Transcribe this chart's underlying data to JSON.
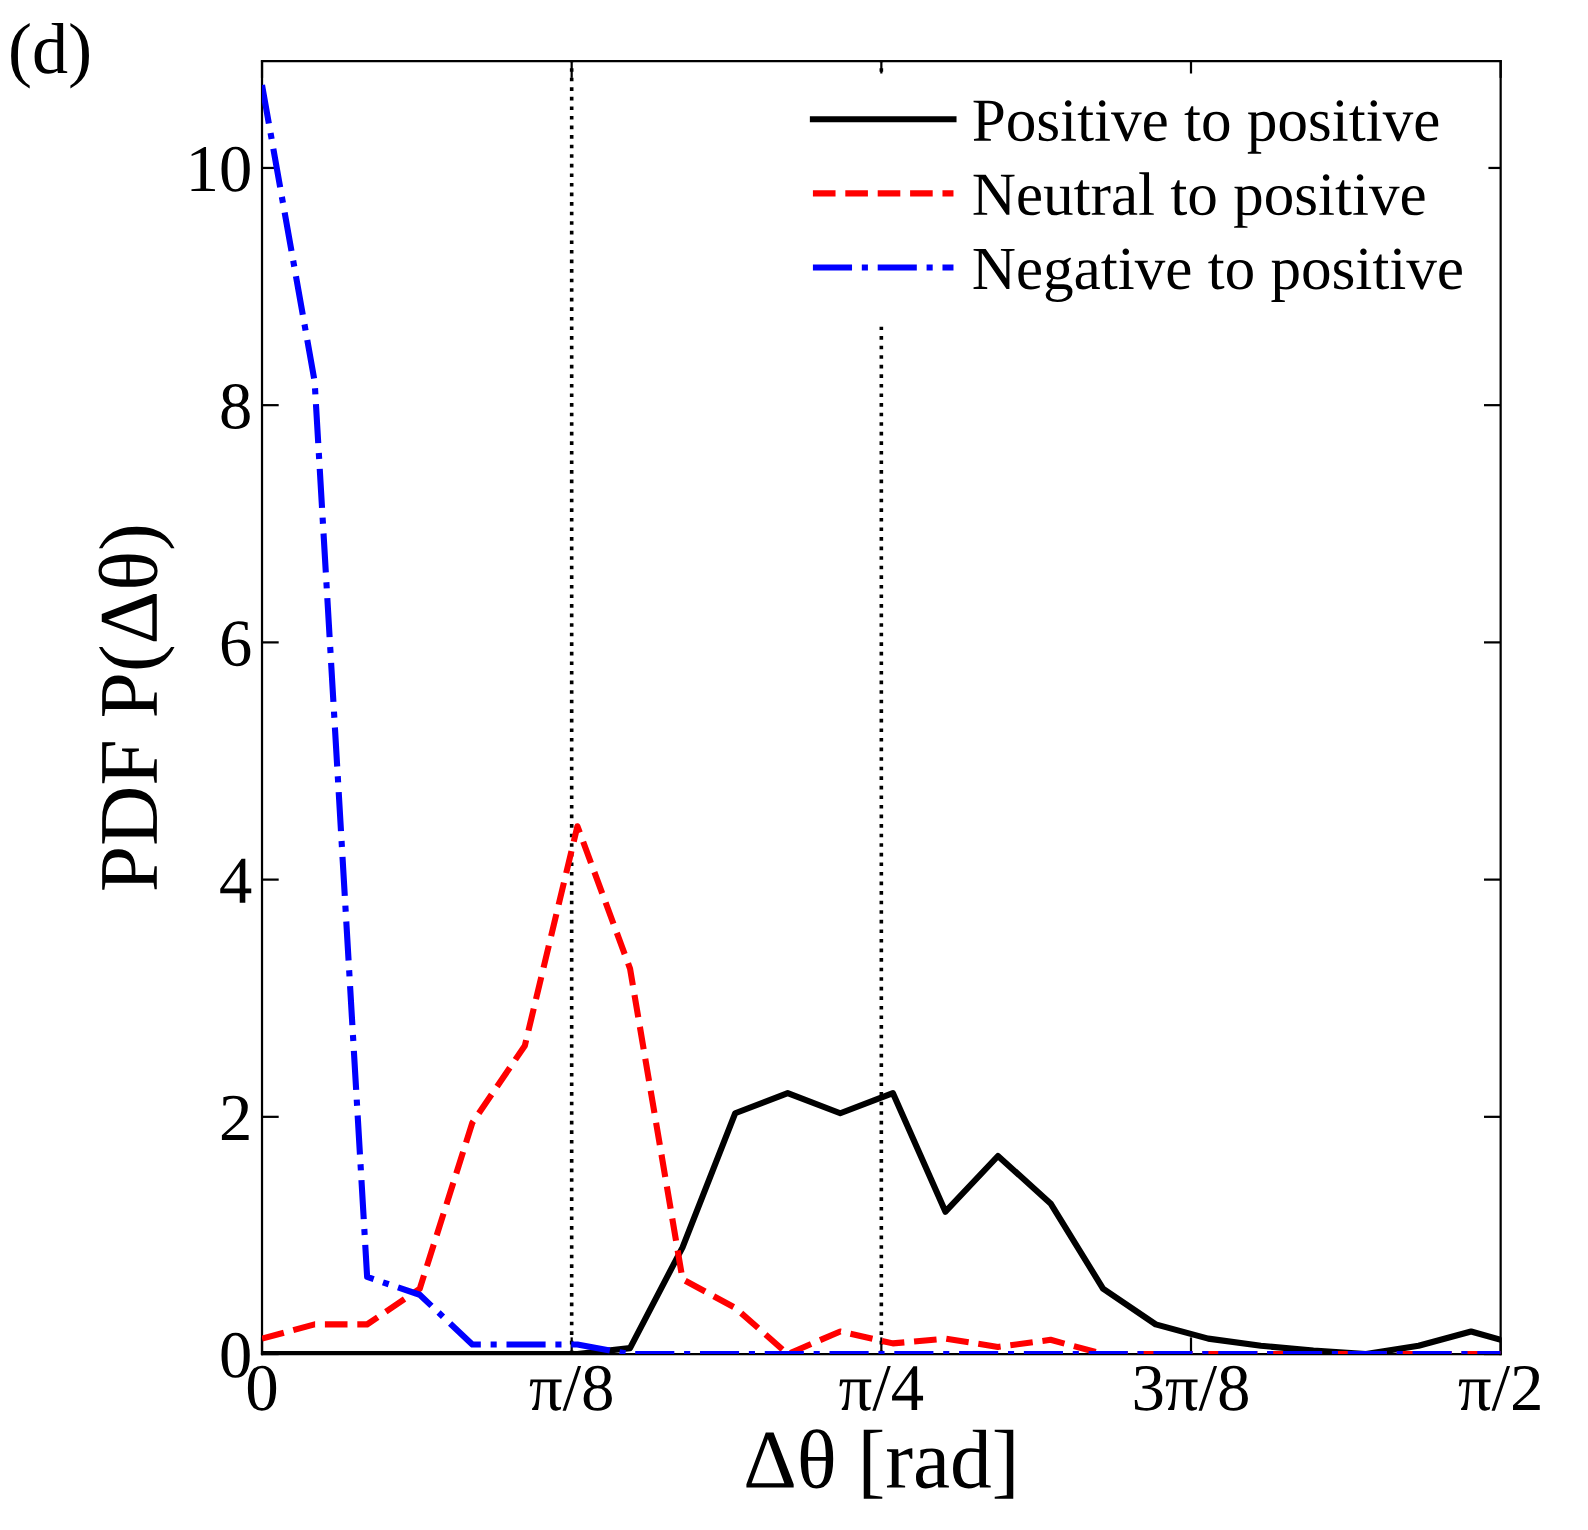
{
  "chart_data": {
    "type": "line",
    "annotations": [
      "(d)"
    ],
    "xlabel": "Δθ [rad]",
    "ylabel": "PDF P(Δθ)",
    "x": [
      0,
      0.0667,
      0.1333,
      0.2,
      0.2667,
      0.3333,
      0.4,
      0.4667,
      0.5333,
      0.6,
      0.6667,
      0.7333,
      0.8,
      0.8667,
      0.9333,
      1.0,
      1.0667,
      1.1333,
      1.2,
      1.2667,
      1.3333,
      1.4,
      1.4667,
      1.5333,
      1.5708
    ],
    "series": [
      {
        "name": "Positive to positive",
        "color": "#000000",
        "line_style": "solid",
        "values": [
          0,
          0,
          0,
          0,
          0,
          0,
          0,
          0.05,
          0.9,
          2.03,
          2.2,
          2.03,
          2.2,
          1.2,
          1.67,
          1.27,
          0.55,
          0.25,
          0.13,
          0.07,
          0.03,
          0,
          0.07,
          0.19,
          0.12
        ]
      },
      {
        "name": "Neutral to positive",
        "color": "#ff0000",
        "line_style": "dashed",
        "values": [
          0.13,
          0.25,
          0.25,
          0.55,
          1.95,
          2.6,
          4.45,
          3.25,
          0.63,
          0.39,
          0,
          0.19,
          0.09,
          0.13,
          0.06,
          0.12,
          0,
          0,
          0,
          0,
          0,
          0,
          0,
          0,
          0
        ]
      },
      {
        "name": "Negative to positive",
        "color": "#0000ff",
        "line_style": "dashdot",
        "values": [
          10.7,
          8.2,
          0.65,
          0.5,
          0.08,
          0.08,
          0.08,
          0,
          0,
          0,
          0,
          0,
          0,
          0,
          0,
          0,
          0,
          0,
          0,
          0,
          0,
          0,
          0,
          0,
          0
        ]
      }
    ],
    "xlim": [
      0,
      1.5708
    ],
    "xticks": [
      0,
      {
        "value": 0.3927,
        "label": "π/8"
      },
      {
        "value": 0.7854,
        "label": "π/4"
      },
      {
        "value": 1.1781,
        "label": "3π/8"
      },
      {
        "value": 1.5708,
        "label": "π/2"
      }
    ],
    "ylim": [
      0,
      10.9
    ],
    "yticks": [
      0,
      2,
      4,
      6,
      8,
      10
    ],
    "ref_lines": [
      {
        "axis": "x",
        "value": 0.3927,
        "color": "#000000",
        "line_style": "dotted"
      },
      {
        "axis": "x",
        "value": 0.7854,
        "color": "#000000",
        "line_style": "dotted"
      }
    ],
    "grid": false,
    "legend": "top right",
    "marker": "none"
  }
}
